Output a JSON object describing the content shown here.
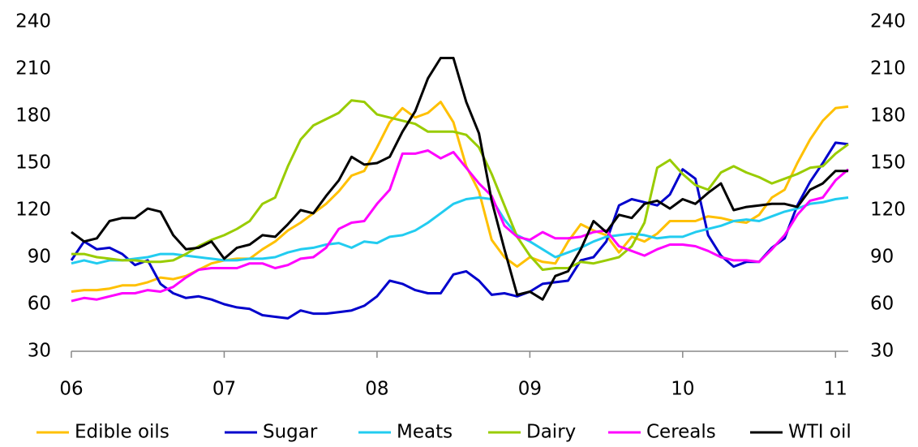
{
  "chart_data": {
    "type": "line",
    "categories": [
      "06",
      null,
      null,
      null,
      null,
      null,
      null,
      null,
      null,
      null,
      null,
      null,
      "07",
      null,
      null,
      null,
      null,
      null,
      null,
      null,
      null,
      null,
      null,
      null,
      "08",
      null,
      null,
      null,
      null,
      null,
      null,
      null,
      null,
      null,
      null,
      null,
      "09",
      null,
      null,
      null,
      null,
      null,
      null,
      null,
      null,
      null,
      null,
      null,
      "10",
      null,
      null,
      null,
      null,
      null,
      null,
      null,
      null,
      null,
      null,
      null,
      "11",
      null
    ],
    "ylim": [
      30,
      240
    ],
    "yticks": [
      30,
      60,
      90,
      120,
      150,
      180,
      210,
      240
    ],
    "y2lim": [
      30,
      240
    ],
    "y2ticks": [
      30,
      60,
      90,
      120,
      150,
      180,
      210,
      240
    ],
    "grid": false,
    "legend": "bottom",
    "series": [
      {
        "name": "Edible oils",
        "color": "#FFC000",
        "values": [
          68,
          69,
          69,
          70,
          72,
          72,
          74,
          77,
          76,
          78,
          82,
          86,
          88,
          89,
          89,
          95,
          100,
          107,
          112,
          118,
          124,
          132,
          142,
          145,
          160,
          176,
          185,
          179,
          182,
          189,
          176,
          148,
          132,
          101,
          90,
          84,
          90,
          87,
          86,
          100,
          111,
          107,
          104,
          93,
          103,
          100,
          105,
          113,
          113,
          113,
          116,
          115,
          113,
          112,
          117,
          128,
          133,
          150,
          165,
          177,
          185,
          186
        ]
      },
      {
        "name": "Sugar",
        "color": "#0000CC",
        "values": [
          88,
          100,
          95,
          96,
          92,
          85,
          88,
          73,
          67,
          64,
          65,
          63,
          60,
          58,
          57,
          53,
          52,
          51,
          56,
          54,
          54,
          55,
          56,
          59,
          65,
          75,
          73,
          69,
          67,
          67,
          79,
          81,
          75,
          66,
          67,
          65,
          68,
          73,
          74,
          75,
          88,
          90,
          100,
          123,
          127,
          125,
          123,
          130,
          146,
          140,
          104,
          91,
          84,
          87,
          87,
          96,
          102,
          123,
          138,
          150,
          163,
          162
        ]
      },
      {
        "name": "Meats",
        "color": "#22CCF0",
        "values": [
          86,
          88,
          86,
          88,
          88,
          89,
          90,
          92,
          92,
          91,
          90,
          89,
          88,
          88,
          89,
          89,
          90,
          93,
          95,
          96,
          98,
          99,
          96,
          100,
          99,
          103,
          104,
          107,
          112,
          118,
          124,
          127,
          128,
          127,
          114,
          104,
          100,
          95,
          90,
          93,
          96,
          100,
          103,
          104,
          105,
          104,
          102,
          103,
          103,
          106,
          108,
          110,
          113,
          114,
          113,
          116,
          119,
          121,
          124,
          125,
          127,
          128
        ]
      },
      {
        "name": "Dairy",
        "color": "#99CC00",
        "values": [
          92,
          92,
          90,
          89,
          88,
          88,
          87,
          87,
          88,
          92,
          97,
          101,
          104,
          108,
          113,
          124,
          128,
          148,
          165,
          174,
          178,
          182,
          190,
          189,
          181,
          179,
          177,
          175,
          170,
          170,
          170,
          168,
          160,
          143,
          123,
          103,
          91,
          82,
          83,
          83,
          87,
          86,
          88,
          90,
          97,
          112,
          147,
          152,
          143,
          136,
          133,
          144,
          148,
          144,
          141,
          137,
          140,
          143,
          147,
          148,
          156,
          162
        ]
      },
      {
        "name": "Cereals",
        "color": "#FF00FF",
        "values": [
          62,
          64,
          63,
          65,
          67,
          67,
          69,
          68,
          71,
          77,
          82,
          83,
          83,
          83,
          86,
          86,
          83,
          85,
          89,
          90,
          96,
          108,
          112,
          113,
          124,
          133,
          156,
          156,
          158,
          153,
          157,
          147,
          137,
          129,
          110,
          103,
          101,
          106,
          102,
          102,
          103,
          106,
          107,
          97,
          94,
          91,
          95,
          98,
          98,
          97,
          94,
          90,
          88,
          88,
          87,
          95,
          104,
          117,
          126,
          128,
          139,
          146
        ]
      },
      {
        "name": "WTI oil",
        "color": "#000000",
        "values": [
          106,
          100,
          102,
          113,
          115,
          115,
          121,
          119,
          104,
          95,
          96,
          100,
          89,
          96,
          98,
          104,
          103,
          111,
          120,
          118,
          129,
          139,
          154,
          149,
          150,
          154,
          170,
          183,
          204,
          217,
          217,
          189,
          169,
          126,
          95,
          66,
          68,
          63,
          78,
          81,
          95,
          113,
          106,
          117,
          115,
          124,
          126,
          121,
          127,
          124,
          131,
          137,
          120,
          122,
          123,
          124,
          124,
          122,
          133,
          137,
          145,
          145
        ]
      }
    ]
  }
}
